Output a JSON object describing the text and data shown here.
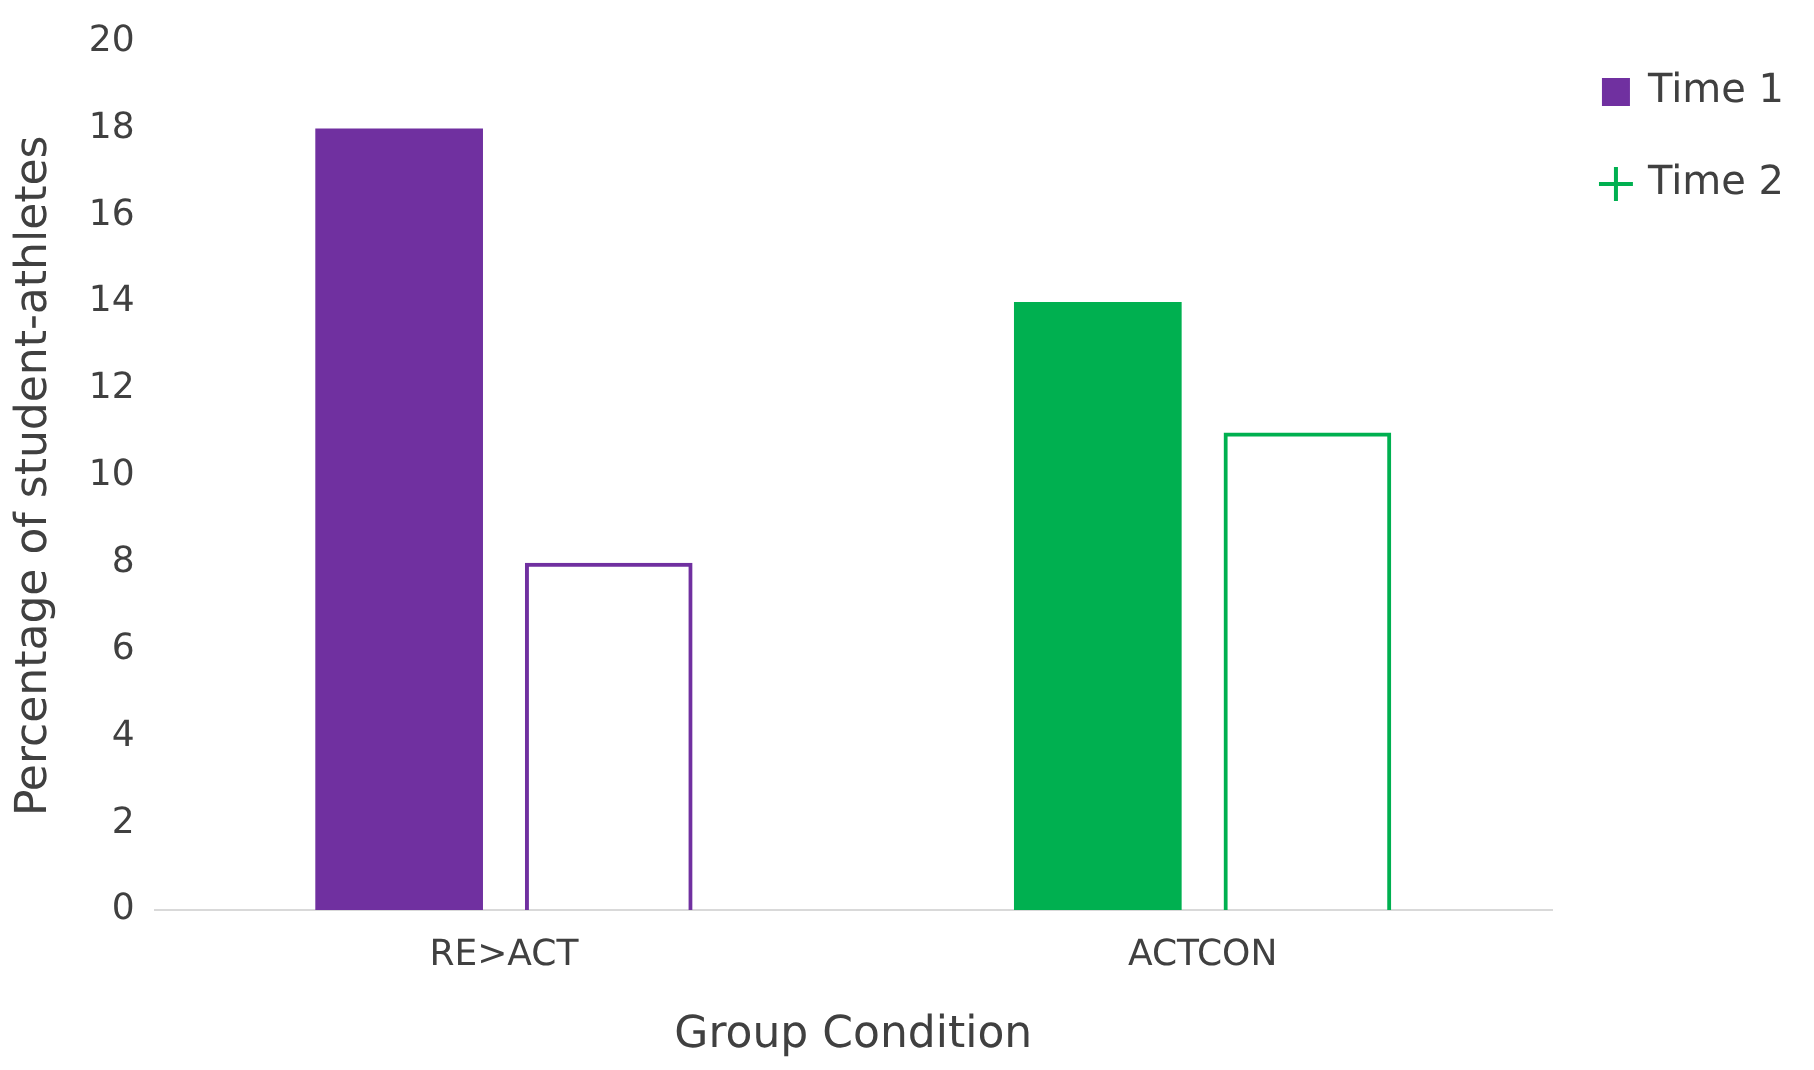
{
  "chart_data": {
    "type": "bar",
    "xlabel": "Group Condition",
    "ylabel": "Percentage of student-athletes",
    "categories": [
      "RE>ACT",
      "ACTCON"
    ],
    "series": [
      {
        "name": "Time 1",
        "color": "#7030a0",
        "colors": [
          "#7030a0",
          "#00b050"
        ],
        "values": [
          18,
          14
        ]
      },
      {
        "name": "Time 2",
        "color": "#00b050",
        "colors": [
          "#7030a0",
          "#00b050"
        ],
        "values": [
          8,
          11
        ]
      }
    ],
    "ylim": [
      0,
      20
    ],
    "yticks": [
      0,
      2,
      4,
      6,
      8,
      10,
      12,
      14,
      16,
      18,
      20
    ],
    "grid": false,
    "legend": "top right"
  }
}
